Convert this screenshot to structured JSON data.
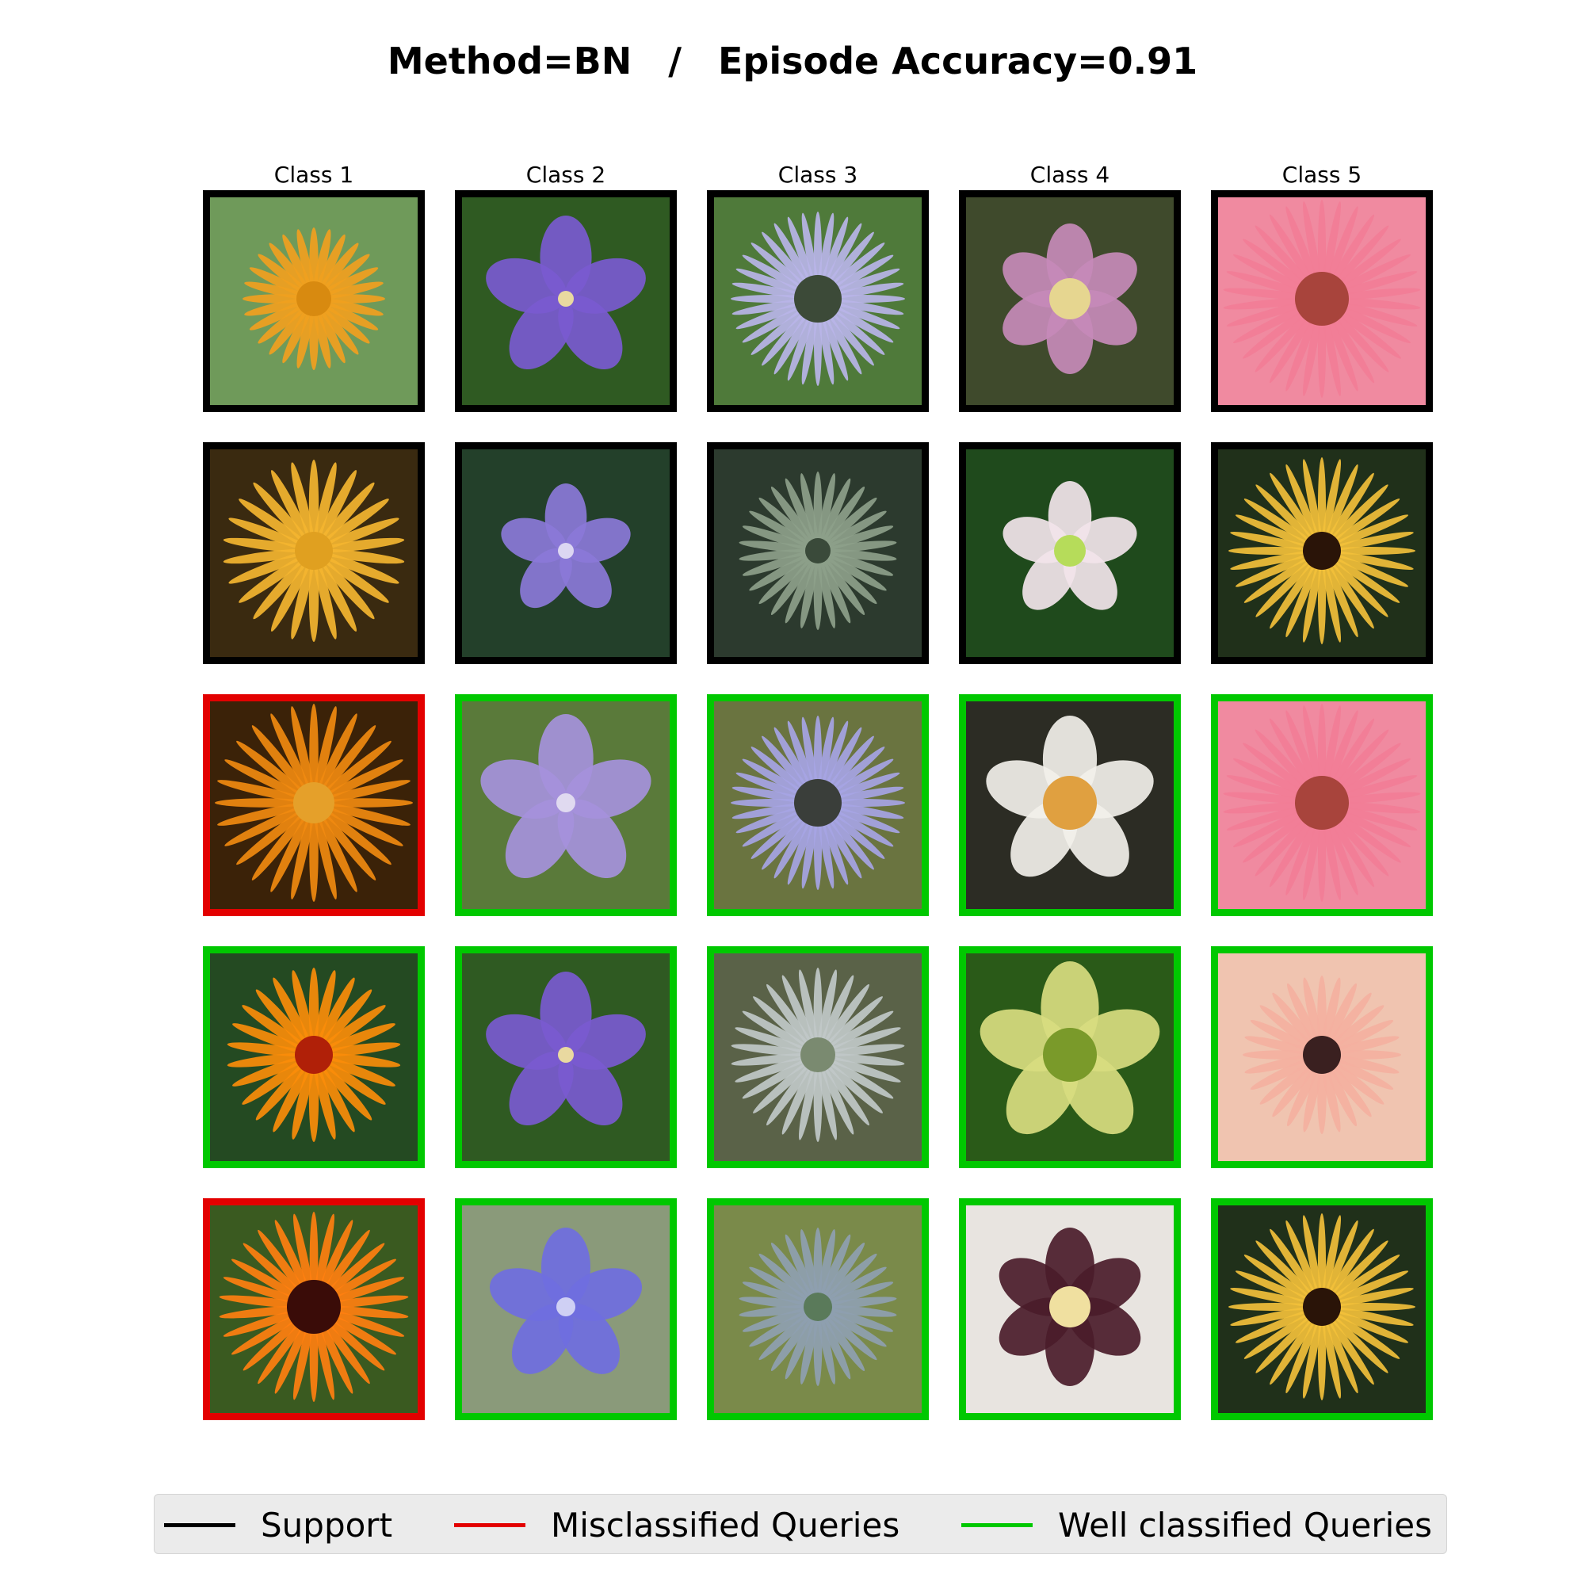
{
  "title": {
    "method": "Method=BN",
    "separator": "/",
    "accuracy": "Episode Accuracy=0.91"
  },
  "classes": [
    "Class 1",
    "Class 2",
    "Class 3",
    "Class 4",
    "Class 5"
  ],
  "colors": {
    "support": "#000000",
    "misclassified": "#e30000",
    "well_classified": "#00c800"
  },
  "rows": [
    {
      "kind": "support",
      "cells": [
        {
          "flower": "orange-daisy-flower",
          "status": "support"
        },
        {
          "flower": "purple-bellflower",
          "status": "support"
        },
        {
          "flower": "sea-holly-thistle",
          "status": "support"
        },
        {
          "flower": "pink-hellebore",
          "status": "support"
        },
        {
          "flower": "pink-gerbera",
          "status": "support"
        }
      ]
    },
    {
      "kind": "support",
      "cells": [
        {
          "flower": "yellow-daisy-flower",
          "status": "support"
        },
        {
          "flower": "purple-bellflowers",
          "status": "support"
        },
        {
          "flower": "dark-sea-holly",
          "status": "support"
        },
        {
          "flower": "white-pink-hellebore",
          "status": "support"
        },
        {
          "flower": "yellow-gerbera",
          "status": "support"
        }
      ]
    },
    {
      "kind": "query",
      "cells": [
        {
          "flower": "orange-marigold",
          "status": "misclassified"
        },
        {
          "flower": "lilac-bellflower",
          "status": "well_classified"
        },
        {
          "flower": "sea-holly-with-bee",
          "status": "well_classified"
        },
        {
          "flower": "white-hellebore",
          "status": "well_classified"
        },
        {
          "flower": "pink-gerbera",
          "status": "well_classified"
        }
      ]
    },
    {
      "kind": "query",
      "cells": [
        {
          "flower": "orange-marigold-red-center",
          "status": "well_classified"
        },
        {
          "flower": "purple-bellflower",
          "status": "well_classified"
        },
        {
          "flower": "silver-sea-holly",
          "status": "well_classified"
        },
        {
          "flower": "green-speckled-hellebore",
          "status": "well_classified"
        },
        {
          "flower": "peach-gerberas",
          "status": "well_classified"
        }
      ]
    },
    {
      "kind": "query",
      "cells": [
        {
          "flower": "orange-marigold-dark-center",
          "status": "misclassified"
        },
        {
          "flower": "blue-bellflower",
          "status": "well_classified"
        },
        {
          "flower": "green-sea-holly",
          "status": "well_classified"
        },
        {
          "flower": "dark-plum-hellebore",
          "status": "well_classified"
        },
        {
          "flower": "yellow-gerbera",
          "status": "well_classified"
        }
      ]
    }
  ],
  "legend": [
    {
      "label": "Support",
      "color": "#000000"
    },
    {
      "label": "Misclassified Queries",
      "color": "#e30000"
    },
    {
      "label": "Well classified Queries",
      "color": "#00c800"
    }
  ]
}
